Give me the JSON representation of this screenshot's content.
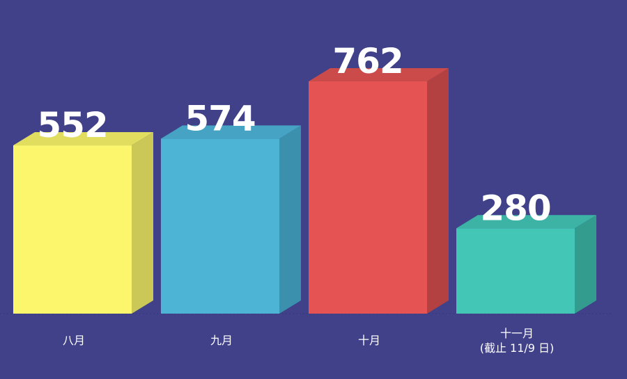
{
  "chart_data": {
    "type": "bar",
    "title": "",
    "xlabel": "",
    "ylabel": "",
    "categories": [
      "八月",
      "九月",
      "十月",
      "十一月\n(截止 11/9 日)"
    ],
    "values": [
      552,
      574,
      762,
      280
    ],
    "data_labels": [
      "552",
      "574",
      "762",
      "280"
    ],
    "grid": false,
    "legend": "none",
    "style": "3d-bars",
    "colors": [
      {
        "front": "#FCF66C",
        "side": "#CBC858",
        "top": "#E1DD5F"
      },
      {
        "front": "#4DB4D6",
        "side": "#3B90AE",
        "top": "#46A3C4"
      },
      {
        "front": "#E55352",
        "side": "#B44142",
        "top": "#CB4A4A"
      },
      {
        "front": "#44C6B6",
        "side": "#339C8F",
        "top": "#3DB3A5"
      }
    ]
  },
  "background": "#404189"
}
